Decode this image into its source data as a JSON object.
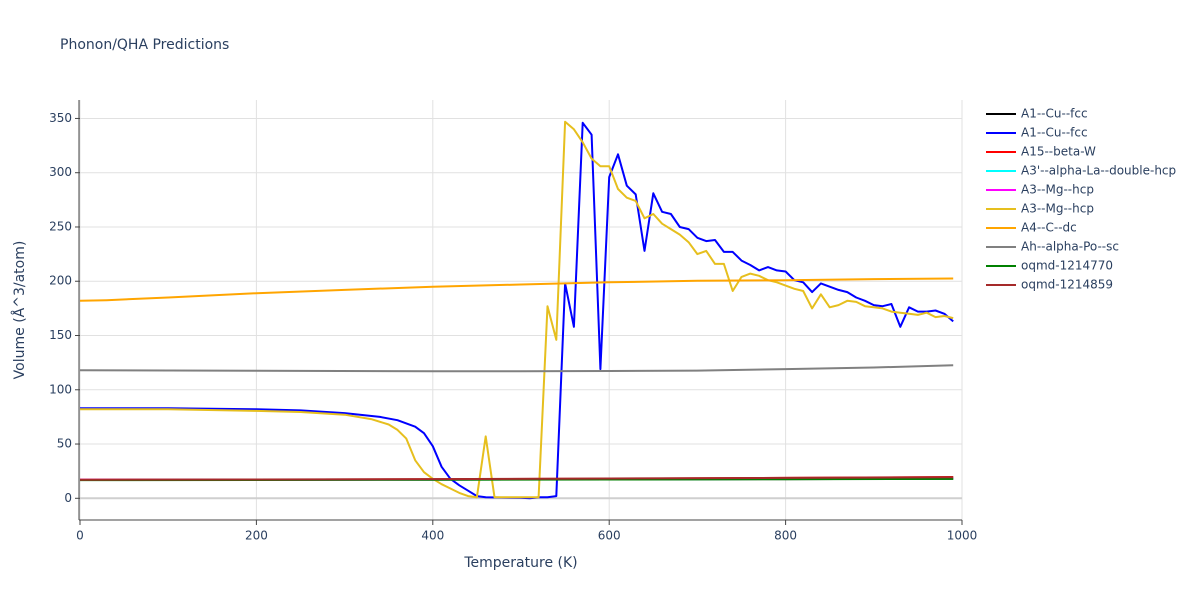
{
  "chart_data": {
    "type": "line",
    "title": "Phonon/QHA Predictions",
    "x_label": "Temperature (K)",
    "y_label": "Volume (Å^3/atom)",
    "xlim": [
      0,
      1000
    ],
    "ylim": [
      -20,
      367
    ],
    "xticks": [
      0,
      200,
      400,
      600,
      800,
      1000
    ],
    "yticks": [
      0,
      50,
      100,
      150,
      200,
      250,
      300,
      350
    ],
    "grid": true,
    "series": [
      {
        "name": "A1--Cu--fcc",
        "color": "#000000",
        "x": [
          0,
          200,
          400,
          600,
          800,
          990
        ],
        "values": [
          16.9,
          17.0,
          17.2,
          17.4,
          17.7,
          18.0
        ]
      },
      {
        "name": "A1--Cu--fcc",
        "color": "#0000ff",
        "x": [
          0,
          100,
          200,
          250,
          300,
          340,
          360,
          380,
          390,
          400,
          410,
          420,
          430,
          440,
          450,
          460,
          500,
          510,
          520,
          530,
          540,
          550,
          560,
          570,
          580,
          590,
          600,
          610,
          620,
          630,
          640,
          650,
          660,
          670,
          680,
          690,
          700,
          710,
          720,
          730,
          740,
          750,
          760,
          770,
          780,
          790,
          800,
          810,
          820,
          830,
          840,
          850,
          860,
          870,
          880,
          890,
          900,
          910,
          920,
          930,
          940,
          950,
          960,
          970,
          980,
          990
        ],
        "values": [
          83,
          83,
          82,
          81,
          78.5,
          75,
          72,
          66,
          60,
          48,
          29,
          18,
          12,
          7,
          2,
          1,
          0.5,
          0,
          1,
          1,
          2,
          198,
          158,
          346,
          335,
          119,
          296,
          317,
          288,
          280,
          228,
          281,
          264,
          262,
          250,
          248,
          240,
          237,
          238,
          227,
          227,
          219,
          215,
          210,
          213,
          210,
          209,
          201,
          199,
          190,
          198,
          195,
          192,
          190,
          185,
          182,
          178,
          177,
          179,
          158,
          176,
          172,
          172,
          173,
          170,
          163
        ]
      },
      {
        "name": "A15--beta-W",
        "color": "#ff0000",
        "x": [
          0,
          200,
          400,
          600,
          800,
          990
        ],
        "values": [
          17.0,
          17.2,
          17.6,
          18.1,
          18.8,
          19.6
        ]
      },
      {
        "name": "A3'--alpha-La--double-hcp",
        "color": "#00ffff",
        "x": [
          0,
          200,
          400,
          600,
          800,
          990
        ],
        "values": [
          16.9,
          17.0,
          17.2,
          17.5,
          17.8,
          18.2
        ]
      },
      {
        "name": "A3--Mg--hcp",
        "color": "#ff00ff",
        "x": [
          0,
          200,
          400,
          600,
          800,
          990
        ],
        "values": [
          17.0,
          17.1,
          17.3,
          17.6,
          18.0,
          18.5
        ]
      },
      {
        "name": "A3--Mg--hcp",
        "color": "#e6bf1e",
        "x": [
          0,
          100,
          200,
          250,
          300,
          330,
          350,
          360,
          370,
          380,
          390,
          400,
          410,
          420,
          430,
          440,
          450,
          460,
          470,
          490,
          510,
          520,
          530,
          540,
          550,
          560,
          570,
          580,
          590,
          600,
          610,
          620,
          630,
          640,
          650,
          660,
          670,
          680,
          690,
          700,
          710,
          720,
          730,
          740,
          750,
          760,
          770,
          780,
          790,
          800,
          810,
          820,
          830,
          840,
          850,
          860,
          870,
          880,
          890,
          900,
          910,
          920,
          930,
          940,
          950,
          960,
          970,
          980,
          990
        ],
        "values": [
          82,
          82,
          80.5,
          79.5,
          77,
          73,
          68,
          63,
          55,
          35,
          24,
          18,
          13,
          9,
          5,
          2,
          1,
          57,
          1,
          1,
          1,
          1,
          177,
          146,
          347,
          340,
          328,
          313,
          306,
          306,
          285,
          277,
          274,
          258,
          262,
          253,
          248,
          243,
          236,
          225,
          228,
          216,
          216,
          191,
          204,
          207,
          205,
          201,
          199,
          196,
          193,
          191,
          175,
          188,
          176,
          178,
          182,
          181,
          177,
          176,
          175,
          172,
          171,
          170,
          169,
          171,
          167,
          168,
          166
        ]
      },
      {
        "name": "A4--C--dc",
        "color": "#ffa500",
        "x": [
          0,
          30,
          100,
          200,
          300,
          400,
          500,
          600,
          700,
          800,
          900,
          990
        ],
        "values": [
          182,
          182.5,
          185,
          189,
          192,
          195,
          197,
          199,
          200.5,
          201,
          202,
          202.5
        ]
      },
      {
        "name": "Ah--alpha-Po--sc",
        "color": "#808080",
        "x": [
          0,
          200,
          400,
          500,
          600,
          700,
          800,
          900,
          990
        ],
        "values": [
          118,
          117.5,
          117,
          117,
          117.3,
          117.7,
          119,
          120.5,
          122.5
        ]
      },
      {
        "name": "oqmd-1214770",
        "color": "#008000",
        "x": [
          0,
          200,
          400,
          600,
          800,
          990
        ],
        "values": [
          16.8,
          16.9,
          17.1,
          17.3,
          17.6,
          17.9
        ]
      },
      {
        "name": "oqmd-1214859",
        "color": "#a52a2a",
        "x": [
          0,
          200,
          400,
          600,
          800,
          990
        ],
        "values": [
          17.1,
          17.3,
          17.7,
          18.2,
          18.8,
          19.4
        ]
      }
    ]
  }
}
